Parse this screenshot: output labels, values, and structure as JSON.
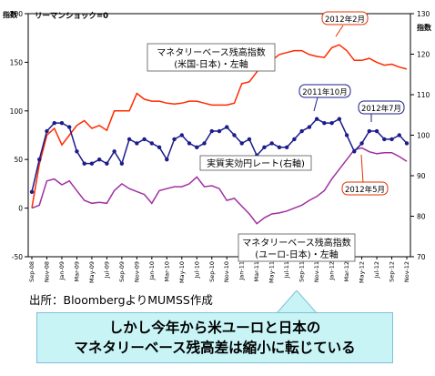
{
  "chart_data": {
    "type": "line",
    "annotation_top": "リーマンショック=0",
    "y_left_label": "指数",
    "y_right_label": "指数",
    "y_left_range": [
      -50,
      200
    ],
    "y_right_range": [
      70,
      130
    ],
    "y_left_ticks": [
      "200",
      "150",
      "100",
      "50",
      "0",
      "-50"
    ],
    "y_right_ticks": [
      "130",
      "120",
      "110",
      "100",
      "90",
      "80",
      "70"
    ],
    "x_ticks": [
      "Sep-08",
      "Nov-08",
      "Jan-09",
      "Mar-09",
      "May-09",
      "Jul-09",
      "Sep-09",
      "Nov-09",
      "Jan-10",
      "Mar-10",
      "May-10",
      "Jul-10",
      "Sep-10",
      "Nov-10",
      "Jan-11",
      "Mar-11",
      "May-11",
      "Jul-11",
      "Sep-11",
      "Nov-11",
      "Jan-12",
      "Mar-12",
      "May-12",
      "Jul-12",
      "Sep-12",
      "Nov-12"
    ],
    "series": [
      {
        "name": "マネタリーベース残高指数\n(米国-日本)・左軸",
        "axis": "left",
        "color": "#ff2a00",
        "values": [
          0,
          45,
          75,
          82,
          65,
          75,
          85,
          90,
          82,
          85,
          80,
          100,
          100,
          100,
          118,
          112,
          110,
          110,
          108,
          107,
          108,
          110,
          110,
          108,
          106,
          106,
          106,
          108,
          128,
          130,
          140,
          150,
          152,
          158,
          160,
          162,
          162,
          158,
          156,
          155,
          165,
          168,
          162,
          152,
          152,
          154,
          150,
          147,
          148,
          145,
          143
        ]
      },
      {
        "name": "マネタリーベース残高指数\n(ユーロ-日本)・左軸",
        "axis": "left",
        "color": "#a030a0",
        "values": [
          0,
          3,
          28,
          30,
          24,
          28,
          18,
          8,
          5,
          6,
          5,
          18,
          25,
          20,
          17,
          14,
          5,
          18,
          20,
          22,
          22,
          25,
          32,
          22,
          23,
          20,
          8,
          10,
          2,
          -6,
          -16,
          -10,
          -6,
          -5,
          -3,
          0,
          3,
          8,
          12,
          18,
          30,
          40,
          50,
          60,
          62,
          58,
          56,
          57,
          57,
          53,
          48
        ]
      },
      {
        "name": "実質実効円レート(右軸)",
        "axis": "right",
        "color": "#1c1c8c",
        "values": [
          86,
          94,
          101,
          103,
          103,
          102,
          96,
          93,
          93,
          94,
          93,
          96,
          93,
          99,
          98,
          99,
          98,
          97,
          94,
          99,
          100,
          98,
          97,
          98,
          101,
          101,
          102,
          100,
          98,
          99,
          95,
          97,
          98,
          97,
          97,
          99,
          101,
          102,
          104,
          103,
          103,
          104,
          100,
          96,
          98,
          101,
          101,
          99,
          99,
          100,
          98
        ]
      }
    ],
    "callouts": [
      "2012年2月",
      "2011年10月",
      "2012年7月",
      "2012年5月"
    ],
    "series_labels": {
      "us_line1": "マネタリーベース残高指数",
      "us_line2": "(米国-日本)・左軸",
      "yen": "実質実効円レート(右軸)",
      "eu_line1": "マネタリーベース残高指数",
      "eu_line2": "(ユーロ-日本)・左軸"
    },
    "grid": false
  },
  "source_text": "出所：BloombergよりMUMSS作成",
  "banner": {
    "line1": "しかし今年から米ユーロと日本の",
    "line2": "マネタリーベース残高差は縮小に転じている"
  }
}
